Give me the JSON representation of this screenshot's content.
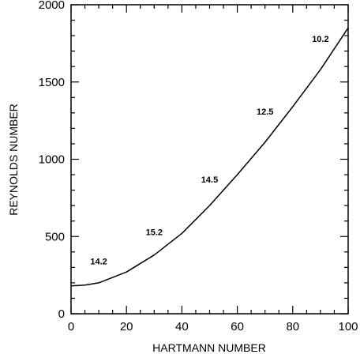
{
  "chart_data": {
    "type": "line",
    "title": "",
    "xlabel": "HARTMANN NUMBER",
    "ylabel": "REYNOLDS NUMBER",
    "xlim": [
      0,
      100
    ],
    "ylim": [
      0,
      2000
    ],
    "x_ticks": [
      0,
      20,
      40,
      60,
      80,
      100
    ],
    "y_ticks": [
      0,
      500,
      1000,
      1500,
      2000
    ],
    "grid": false,
    "series": [
      {
        "x": [
          0,
          5,
          10,
          20,
          30,
          40,
          50,
          60,
          70,
          80,
          90,
          100
        ],
        "y": [
          180,
          185,
          200,
          270,
          380,
          520,
          700,
          900,
          1110,
          1340,
          1580,
          1850
        ]
      }
    ],
    "annotations": [
      {
        "text": "14.2",
        "x": 10,
        "y": 320
      },
      {
        "text": "15.2",
        "x": 30,
        "y": 510
      },
      {
        "text": "14.5",
        "x": 50,
        "y": 850
      },
      {
        "text": "12.5",
        "x": 70,
        "y": 1290
      },
      {
        "text": "10.2",
        "x": 90,
        "y": 1760
      }
    ]
  }
}
